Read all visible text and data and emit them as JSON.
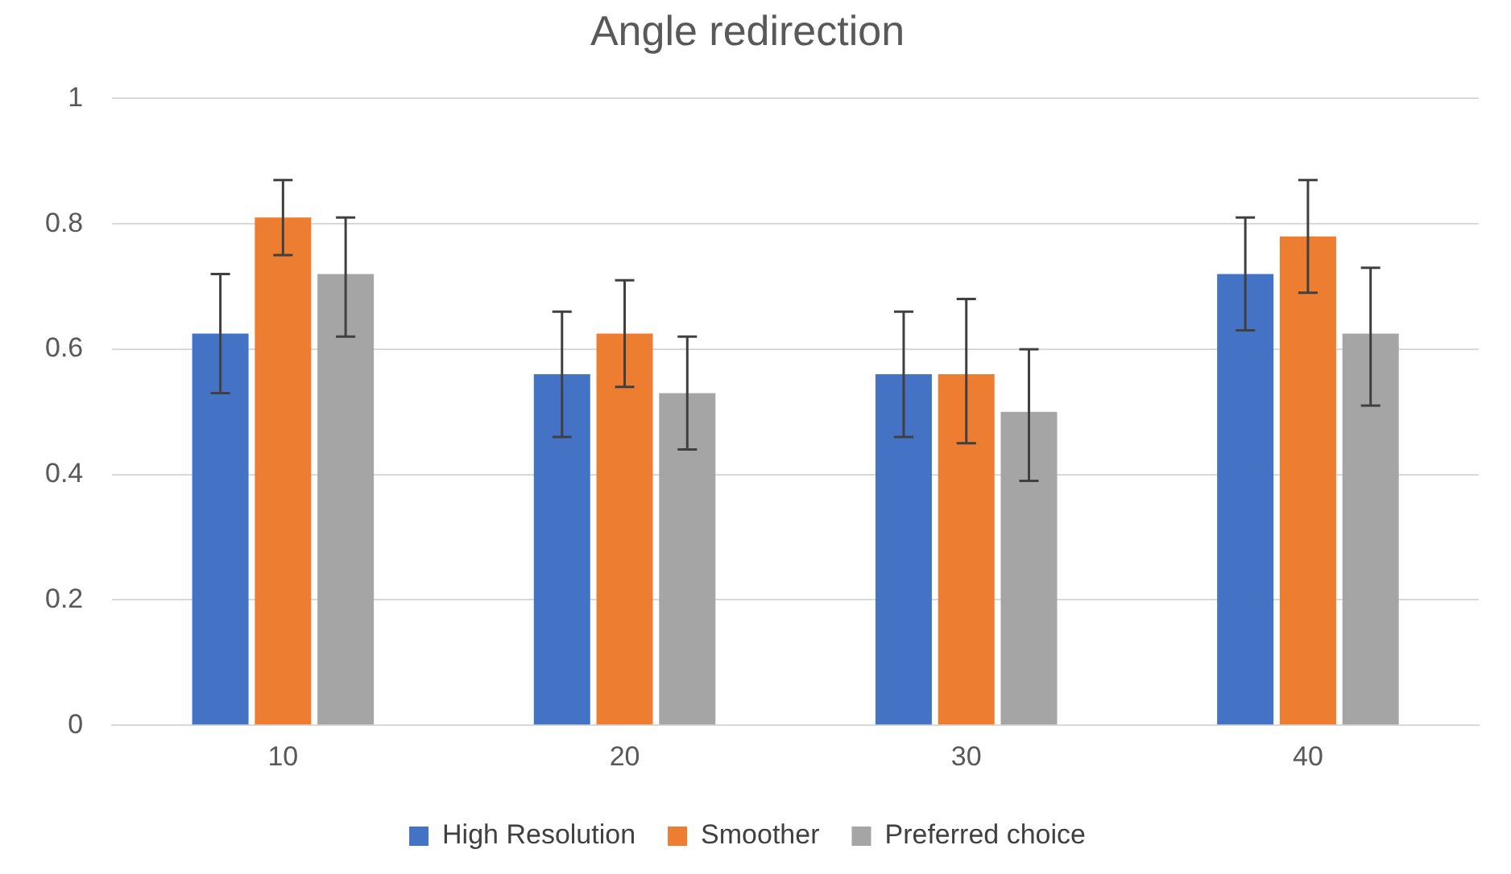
{
  "chart_data": {
    "type": "bar",
    "title": "Angle redirection",
    "categories": [
      "10",
      "20",
      "30",
      "40"
    ],
    "series": [
      {
        "name": "High Resolution",
        "color": "#4472c4",
        "values": [
          0.625,
          0.56,
          0.56,
          0.72
        ],
        "errors": [
          [
            0.53,
            0.72
          ],
          [
            0.46,
            0.66
          ],
          [
            0.46,
            0.66
          ],
          [
            0.63,
            0.81
          ]
        ]
      },
      {
        "name": "Smoother",
        "color": "#ed7d31",
        "values": [
          0.81,
          0.625,
          0.56,
          0.78
        ],
        "errors": [
          [
            0.75,
            0.87
          ],
          [
            0.54,
            0.71
          ],
          [
            0.45,
            0.68
          ],
          [
            0.69,
            0.87
          ]
        ]
      },
      {
        "name": "Preferred choice",
        "color": "#a5a5a5",
        "values": [
          0.72,
          0.53,
          0.5,
          0.625
        ],
        "errors": [
          [
            0.62,
            0.81
          ],
          [
            0.44,
            0.62
          ],
          [
            0.39,
            0.6
          ],
          [
            0.51,
            0.73
          ]
        ]
      }
    ],
    "ylim": [
      0,
      1
    ],
    "yticks": [
      0,
      0.2,
      0.4,
      0.6,
      0.8,
      1
    ],
    "grid": "y",
    "legend": "bottom"
  }
}
